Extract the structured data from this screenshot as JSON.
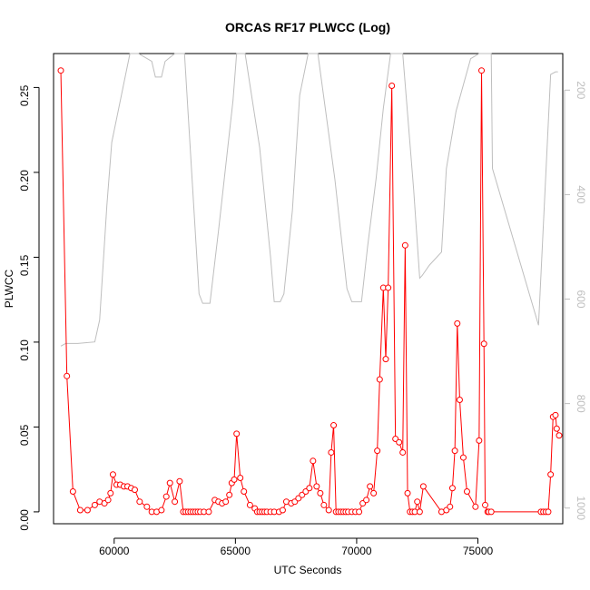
{
  "chart_data": {
    "type": "line",
    "title": "ORCAS RF17 PLWCC (Log)",
    "xlabel": "UTC Seconds",
    "ylabel": "PLWCC",
    "xlim": [
      57500,
      78500
    ],
    "ylim": [
      -0.007,
      0.27
    ],
    "x_ticks": [
      60000,
      65000,
      70000,
      75000
    ],
    "x_tick_labels": [
      "60000",
      "65000",
      "70000",
      "75000"
    ],
    "y_ticks": [
      0.0,
      0.05,
      0.1,
      0.15,
      0.2,
      0.25
    ],
    "y_tick_labels": [
      "0.00",
      "0.05",
      "0.10",
      "0.15",
      "0.20",
      "0.25"
    ],
    "y2_lim": [
      1030,
      130
    ],
    "y2_ticks": [
      200,
      400,
      600,
      800,
      1000
    ],
    "y2_tick_labels": [
      "200",
      "400",
      "600",
      "800",
      "1000"
    ],
    "grid": false,
    "series": [
      {
        "color": "#ff0000",
        "style": "line+circles",
        "points": [
          [
            57800,
            0.26
          ],
          [
            58050,
            0.08
          ],
          [
            58300,
            0.012
          ],
          [
            58600,
            0.001
          ],
          [
            58900,
            0.001
          ],
          [
            59200,
            0.004
          ],
          [
            59400,
            0.006
          ],
          [
            59600,
            0.005
          ],
          [
            59750,
            0.007
          ],
          [
            59850,
            0.011
          ],
          [
            59950,
            0.022
          ],
          [
            60100,
            0.016
          ],
          [
            60250,
            0.016
          ],
          [
            60400,
            0.015
          ],
          [
            60550,
            0.015
          ],
          [
            60700,
            0.014
          ],
          [
            60850,
            0.013
          ],
          [
            61050,
            0.006
          ],
          [
            61350,
            0.003
          ],
          [
            61550,
            0.0
          ],
          [
            61750,
            0.0
          ],
          [
            61950,
            0.001
          ],
          [
            62150,
            0.009
          ],
          [
            62300,
            0.017
          ],
          [
            62500,
            0.006
          ],
          [
            62700,
            0.018
          ],
          [
            62850,
            0.0
          ],
          [
            62950,
            0.0
          ],
          [
            63050,
            0.0
          ],
          [
            63150,
            0.0
          ],
          [
            63250,
            0.0
          ],
          [
            63350,
            0.0
          ],
          [
            63450,
            0.0
          ],
          [
            63550,
            0.0
          ],
          [
            63700,
            0.0
          ],
          [
            63900,
            0.0
          ],
          [
            64150,
            0.007
          ],
          [
            64300,
            0.006
          ],
          [
            64450,
            0.005
          ],
          [
            64600,
            0.006
          ],
          [
            64750,
            0.01
          ],
          [
            64850,
            0.017
          ],
          [
            64950,
            0.019
          ],
          [
            65050,
            0.046
          ],
          [
            65200,
            0.02
          ],
          [
            65350,
            0.012
          ],
          [
            65600,
            0.004
          ],
          [
            65800,
            0.002
          ],
          [
            65900,
            0.0
          ],
          [
            66000,
            0.0
          ],
          [
            66100,
            0.0
          ],
          [
            66200,
            0.0
          ],
          [
            66300,
            0.0
          ],
          [
            66450,
            0.0
          ],
          [
            66600,
            0.0
          ],
          [
            66800,
            0.0
          ],
          [
            66950,
            0.001
          ],
          [
            67100,
            0.006
          ],
          [
            67300,
            0.005
          ],
          [
            67450,
            0.006
          ],
          [
            67600,
            0.008
          ],
          [
            67750,
            0.01
          ],
          [
            67900,
            0.012
          ],
          [
            68050,
            0.014
          ],
          [
            68200,
            0.03
          ],
          [
            68350,
            0.015
          ],
          [
            68500,
            0.011
          ],
          [
            68650,
            0.004
          ],
          [
            68850,
            0.001
          ],
          [
            68950,
            0.035
          ],
          [
            69050,
            0.051
          ],
          [
            69150,
            0.0
          ],
          [
            69250,
            0.0
          ],
          [
            69350,
            0.0
          ],
          [
            69450,
            0.0
          ],
          [
            69550,
            0.0
          ],
          [
            69650,
            0.0
          ],
          [
            69800,
            0.0
          ],
          [
            69950,
            0.0
          ],
          [
            70100,
            0.0
          ],
          [
            70250,
            0.005
          ],
          [
            70400,
            0.007
          ],
          [
            70550,
            0.015
          ],
          [
            70700,
            0.011
          ],
          [
            70850,
            0.036
          ],
          [
            70950,
            0.078
          ],
          [
            71100,
            0.132
          ],
          [
            71200,
            0.09
          ],
          [
            71300,
            0.132
          ],
          [
            71450,
            0.251
          ],
          [
            71600,
            0.043
          ],
          [
            71750,
            0.041
          ],
          [
            71900,
            0.035
          ],
          [
            72000,
            0.157
          ],
          [
            72100,
            0.011
          ],
          [
            72200,
            0.0
          ],
          [
            72300,
            0.0
          ],
          [
            72400,
            0.0
          ],
          [
            72500,
            0.006
          ],
          [
            72600,
            0.0
          ],
          [
            72750,
            0.015
          ],
          [
            73500,
            0.0
          ],
          [
            73700,
            0.001
          ],
          [
            73850,
            0.003
          ],
          [
            73950,
            0.014
          ],
          [
            74050,
            0.036
          ],
          [
            74150,
            0.111
          ],
          [
            74250,
            0.066
          ],
          [
            74400,
            0.032
          ],
          [
            74550,
            0.012
          ],
          [
            74900,
            0.003
          ],
          [
            75050,
            0.042
          ],
          [
            75150,
            0.26
          ],
          [
            75250,
            0.099
          ],
          [
            75300,
            0.004
          ],
          [
            75400,
            0.0
          ],
          [
            75450,
            0.0
          ],
          [
            75550,
            0.0
          ],
          [
            77600,
            0.0
          ],
          [
            77700,
            0.0
          ],
          [
            77800,
            0.0
          ],
          [
            77900,
            0.0
          ],
          [
            78000,
            0.022
          ],
          [
            78100,
            0.056
          ],
          [
            78200,
            0.057
          ],
          [
            78250,
            0.049
          ],
          [
            78350,
            0.045
          ]
        ]
      },
      {
        "color": "#bebebe",
        "style": "line",
        "axis": "right",
        "points": [
          [
            57800,
            690
          ],
          [
            58000,
            685
          ],
          [
            58500,
            685
          ],
          [
            59200,
            682
          ],
          [
            59400,
            640
          ],
          [
            59700,
            420
          ],
          [
            59900,
            300
          ],
          [
            60650,
            130
          ],
          [
            61000,
            130
          ],
          [
            61550,
            145
          ],
          [
            61700,
            175
          ],
          [
            61950,
            175
          ],
          [
            62100,
            145
          ],
          [
            62500,
            130
          ],
          [
            62900,
            130
          ],
          [
            63500,
            590
          ],
          [
            63650,
            608
          ],
          [
            63950,
            608
          ],
          [
            64300,
            470
          ],
          [
            64900,
            220
          ],
          [
            65050,
            130
          ],
          [
            65400,
            130
          ],
          [
            66000,
            310
          ],
          [
            66450,
            520
          ],
          [
            66600,
            605
          ],
          [
            66850,
            605
          ],
          [
            67000,
            590
          ],
          [
            67350,
            430
          ],
          [
            67650,
            210
          ],
          [
            68000,
            130
          ],
          [
            68400,
            130
          ],
          [
            69100,
            370
          ],
          [
            69600,
            580
          ],
          [
            69800,
            605
          ],
          [
            70200,
            605
          ],
          [
            70450,
            500
          ],
          [
            70800,
            370
          ],
          [
            71100,
            235
          ],
          [
            71400,
            130
          ],
          [
            71900,
            130
          ],
          [
            72350,
            390
          ],
          [
            72600,
            560
          ],
          [
            72700,
            555
          ],
          [
            73000,
            535
          ],
          [
            73500,
            510
          ],
          [
            73700,
            350
          ],
          [
            74100,
            240
          ],
          [
            74700,
            140
          ],
          [
            75050,
            130
          ],
          [
            75550,
            120
          ],
          [
            75600,
            350
          ],
          [
            77500,
            650
          ],
          [
            78000,
            170
          ],
          [
            78200,
            165
          ],
          [
            78300,
            165
          ]
        ]
      }
    ]
  }
}
